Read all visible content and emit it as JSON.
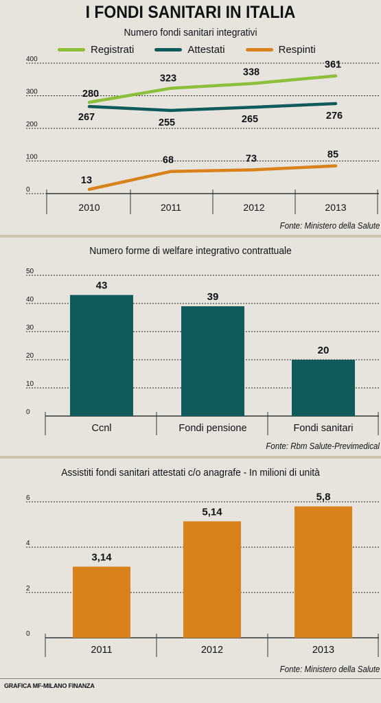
{
  "title": "I FONDI SANITARI IN ITALIA",
  "credit": "GRAFICA MF-MILANO FINANZA",
  "colors": {
    "green": "#8cbf3a",
    "teal": "#0f5b5c",
    "orange": "#d9821c"
  },
  "chart_data": [
    {
      "type": "line",
      "title": "Numero fondi sanitari integrativi",
      "source": "Fonte: Ministero della Salute",
      "categories": [
        "2010",
        "2011",
        "2012",
        "2013"
      ],
      "yticks": [
        "0",
        "100",
        "200",
        "300",
        "400"
      ],
      "ylim": [
        0,
        400
      ],
      "series": [
        {
          "name": "Registrati",
          "values": [
            280,
            323,
            338,
            361
          ],
          "labels": [
            "280",
            "323",
            "338",
            "361"
          ],
          "color": "#8cbf3a"
        },
        {
          "name": "Attestati",
          "values": [
            267,
            255,
            265,
            276
          ],
          "labels": [
            "267",
            "255",
            "265",
            "276"
          ],
          "color": "#0f5b5c"
        },
        {
          "name": "Respinti",
          "values": [
            13,
            68,
            73,
            85
          ],
          "labels": [
            "13",
            "68",
            "73",
            "85"
          ],
          "color": "#d9821c"
        }
      ]
    },
    {
      "type": "bar",
      "title": "Numero forme di welfare integrativo contrattuale",
      "source": "Fonte: Rbm Salute-Previmedical",
      "categories": [
        "Ccnl",
        "Fondi pensione",
        "Fondi sanitari"
      ],
      "values": [
        43,
        39,
        20
      ],
      "labels": [
        "43",
        "39",
        "20"
      ],
      "yticks": [
        "0",
        "10",
        "20",
        "30",
        "40",
        "50"
      ],
      "ylim": [
        0,
        50
      ],
      "color": "#0f5b5c"
    },
    {
      "type": "bar",
      "title": "Assistiti fondi sanitari attestati c/o anagrafe - In milioni di unità",
      "source": "Fonte: Ministero della Salute",
      "categories": [
        "2011",
        "2012",
        "2013"
      ],
      "values": [
        3.14,
        5.14,
        5.8
      ],
      "labels": [
        "3,14",
        "5,14",
        "5,8"
      ],
      "yticks": [
        "0",
        "2",
        "4",
        "6"
      ],
      "ylim": [
        0,
        6
      ],
      "color": "#d9821c"
    }
  ]
}
